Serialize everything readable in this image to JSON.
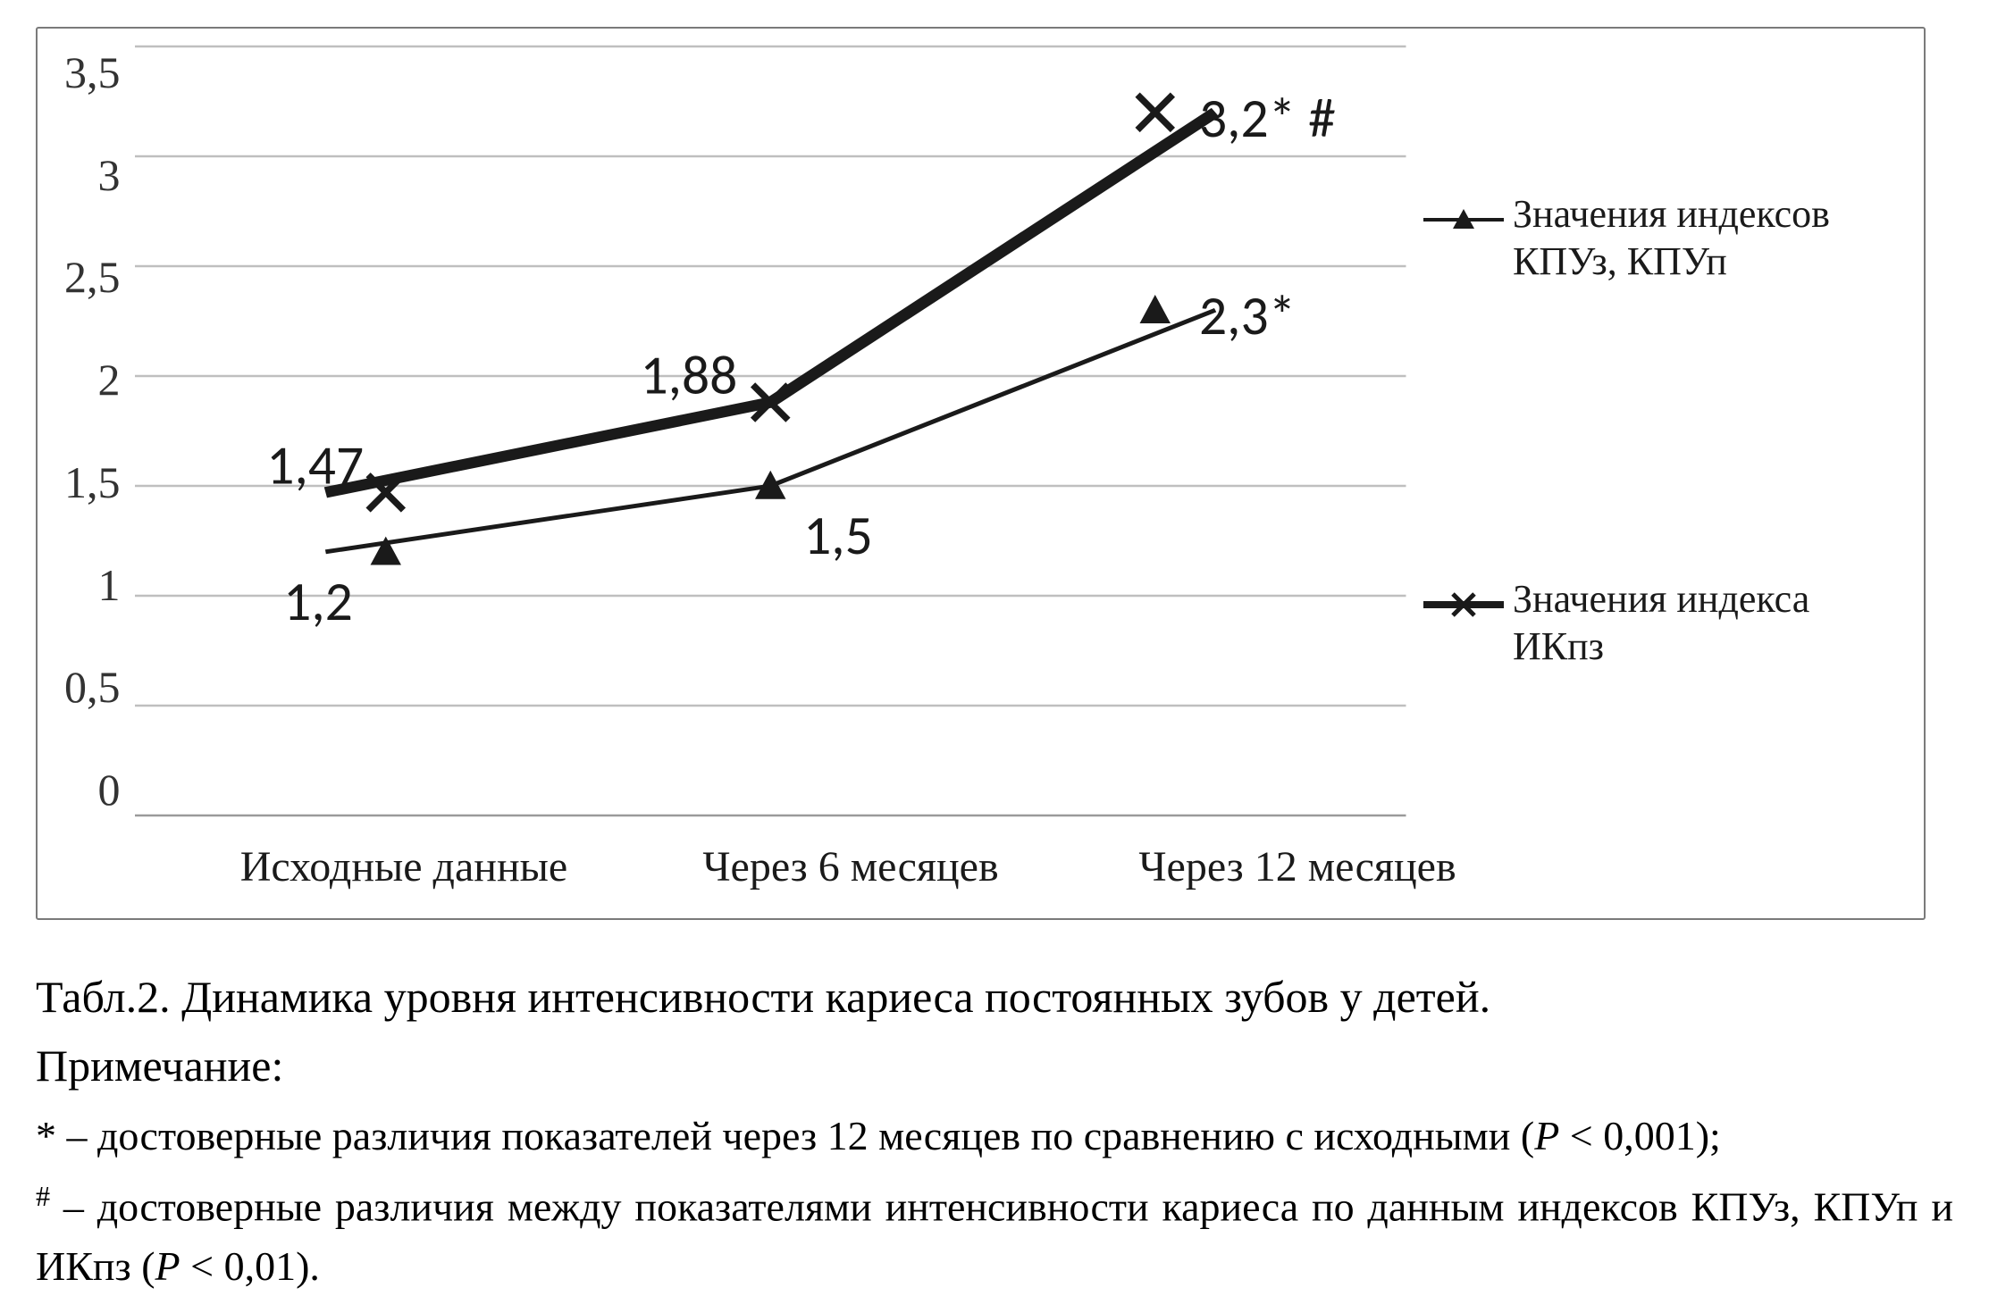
{
  "chart": {
    "type": "line",
    "categories": [
      "Исходные данные",
      "Через 6 месяцев",
      "Через 12 месяцев"
    ],
    "ylim": [
      0,
      3.5
    ],
    "ytick_step": 0.5,
    "yticks": [
      "3,5",
      "3",
      "2,5",
      "2",
      "1,5",
      "1",
      "0,5",
      "0"
    ],
    "grid_color": "#bfbfbf",
    "background_color": "#ffffff",
    "line_color": "#1a1a1a",
    "series": [
      {
        "name": "Значения индексов КПУз, КПУп",
        "marker": "triangle",
        "line_width": 4,
        "values": [
          1.2,
          1.5,
          2.3
        ],
        "data_labels": [
          "1,2",
          "1,5",
          "2,3*"
        ],
        "label_dx": [
          -30,
          30,
          40
        ],
        "label_dy": [
          50,
          50,
          10
        ]
      },
      {
        "name": "Значения индекса ИКпз",
        "marker": "x",
        "line_width": 10,
        "values": [
          1.47,
          1.88,
          3.2
        ],
        "data_labels": [
          "1,47",
          "1,88",
          "3,2*  #"
        ],
        "label_dx": [
          -20,
          -30,
          40
        ],
        "label_dy": [
          -20,
          -20,
          10
        ]
      }
    ],
    "label_fontsize": 50,
    "tick_fontsize": 50,
    "legend_fontsize": 44
  },
  "caption": {
    "title": "Табл.2. Динамика уровня интенсивности кариеса постоянных зубов у детей.",
    "note_head": "Примечание:",
    "note1_prefix": "* – достоверные различия показателей через 12 месяцев по сравнению с исходными (",
    "note1_p": "P",
    "note1_suffix": " < 0,001);",
    "note2_prefix": "# – достоверные различия между показателями интенсивности кариеса по данным индексов КПУз, КПУп и ИКпз (",
    "note2_p": "P",
    "note2_suffix": " < 0,01)."
  }
}
